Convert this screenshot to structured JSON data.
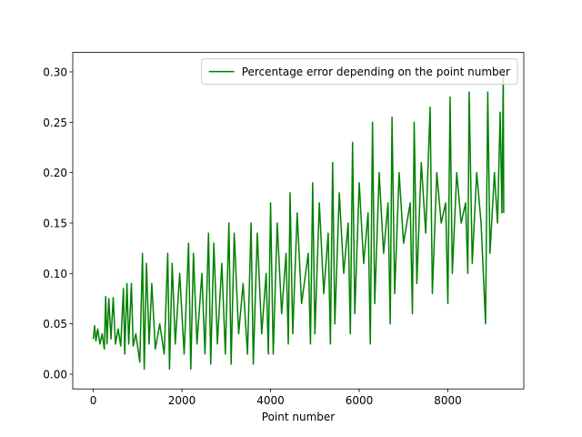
{
  "chart_data": {
    "type": "line",
    "xlabel": "Point number",
    "xlim": [
      -463,
      9713
    ],
    "ylim": [
      -0.0146,
      0.3193
    ],
    "xticks": [
      0,
      2000,
      4000,
      6000,
      8000
    ],
    "yticks": [
      {
        "value": 0,
        "label": "0.00"
      },
      0.05,
      {
        "value": 0.1,
        "label": "0.10"
      },
      0.15,
      {
        "value": 0.2,
        "label": "0.20"
      },
      0.25,
      {
        "value": 0.3,
        "label": "0.30"
      }
    ],
    "legend": "upper right",
    "series": [
      {
        "name": "Percentage error depending on the point number",
        "color": "#008000",
        "x": [
          0,
          30,
          60,
          100,
          150,
          200,
          250,
          280,
          310,
          350,
          400,
          450,
          500,
          560,
          620,
          680,
          710,
          760,
          800,
          860,
          900,
          960,
          1050,
          1110,
          1150,
          1200,
          1260,
          1320,
          1400,
          1500,
          1600,
          1680,
          1720,
          1780,
          1850,
          1950,
          2050,
          2150,
          2200,
          2260,
          2340,
          2450,
          2520,
          2600,
          2650,
          2720,
          2800,
          2900,
          2980,
          3060,
          3110,
          3180,
          3280,
          3380,
          3480,
          3560,
          3610,
          3700,
          3800,
          3900,
          3950,
          4000,
          4060,
          4150,
          4250,
          4350,
          4400,
          4440,
          4500,
          4600,
          4700,
          4850,
          4900,
          4950,
          5000,
          5100,
          5200,
          5300,
          5350,
          5400,
          5450,
          5550,
          5650,
          5750,
          5800,
          5850,
          5900,
          6000,
          6100,
          6200,
          6250,
          6300,
          6350,
          6450,
          6550,
          6650,
          6700,
          6740,
          6800,
          6900,
          7000,
          7150,
          7200,
          7240,
          7300,
          7400,
          7500,
          7600,
          7650,
          7750,
          7850,
          7950,
          8000,
          8050,
          8100,
          8200,
          8300,
          8400,
          8450,
          8480,
          8550,
          8650,
          8750,
          8850,
          8900,
          8950,
          9050,
          9120,
          9180,
          9220,
          9250,
          9260
        ],
        "values": [
          0.035,
          0.048,
          0.033,
          0.045,
          0.03,
          0.04,
          0.025,
          0.077,
          0.03,
          0.075,
          0.035,
          0.076,
          0.03,
          0.045,
          0.028,
          0.085,
          0.02,
          0.09,
          0.03,
          0.09,
          0.028,
          0.04,
          0.012,
          0.12,
          0.005,
          0.11,
          0.03,
          0.09,
          0.025,
          0.05,
          0.02,
          0.12,
          0.005,
          0.11,
          0.03,
          0.1,
          0.02,
          0.13,
          0.005,
          0.12,
          0.03,
          0.1,
          0.02,
          0.14,
          0.01,
          0.13,
          0.03,
          0.11,
          0.02,
          0.15,
          0.01,
          0.14,
          0.04,
          0.09,
          0.02,
          0.15,
          0.01,
          0.14,
          0.04,
          0.1,
          0.02,
          0.17,
          0.02,
          0.15,
          0.06,
          0.12,
          0.03,
          0.18,
          0.04,
          0.16,
          0.07,
          0.12,
          0.03,
          0.19,
          0.04,
          0.17,
          0.08,
          0.14,
          0.03,
          0.21,
          0.05,
          0.18,
          0.1,
          0.15,
          0.04,
          0.23,
          0.06,
          0.19,
          0.11,
          0.16,
          0.03,
          0.25,
          0.07,
          0.2,
          0.12,
          0.17,
          0.05,
          0.255,
          0.08,
          0.2,
          0.13,
          0.17,
          0.06,
          0.25,
          0.09,
          0.21,
          0.14,
          0.265,
          0.08,
          0.2,
          0.15,
          0.17,
          0.07,
          0.275,
          0.1,
          0.2,
          0.15,
          0.17,
          0.1,
          0.28,
          0.11,
          0.2,
          0.15,
          0.05,
          0.28,
          0.12,
          0.2,
          0.15,
          0.26,
          0.16,
          0.3,
          0.16
        ]
      }
    ]
  }
}
